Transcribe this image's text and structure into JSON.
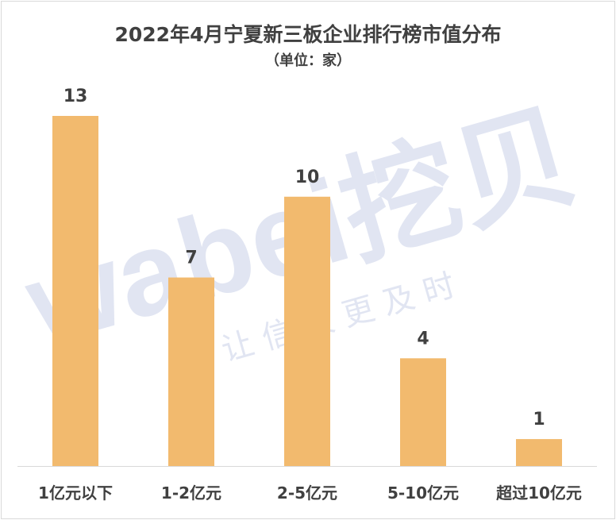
{
  "chart_data": {
    "type": "bar",
    "title": "2022年4月宁夏新三板企业排行榜市值分布",
    "subtitle": "（单位：家）",
    "categories": [
      "1亿元以下",
      "1-2亿元",
      "2-5亿元",
      "5-10亿元",
      "超过10亿元"
    ],
    "values": [
      13,
      7,
      10,
      4,
      1
    ],
    "ylim": [
      0,
      13
    ],
    "grid": false,
    "legend": "none",
    "bar_color": "#F2BA6E",
    "axis_color": "#d9d9d9",
    "label_color": "#404040"
  },
  "watermark": {
    "brand": "wabei挖贝",
    "slogan": "让 信 披 更 及 时",
    "color": "#c9d1e8"
  }
}
